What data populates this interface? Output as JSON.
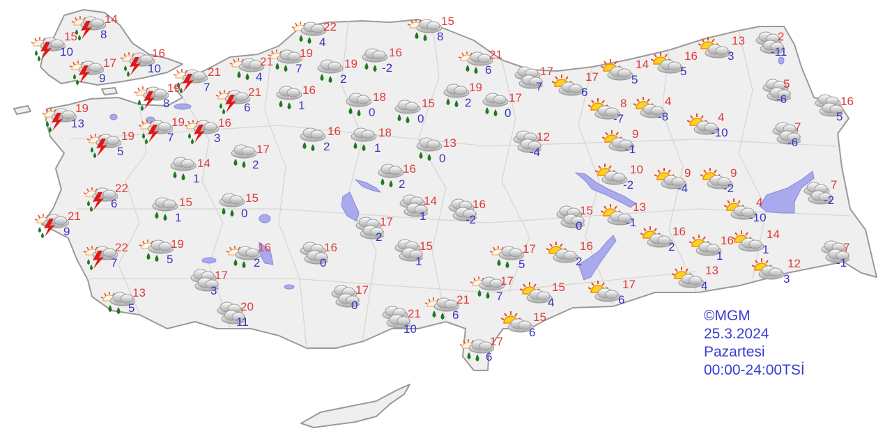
{
  "legend": {
    "copyright": "©MGM",
    "date": "25.3.2024",
    "day": "Pazartesi",
    "period": "00:00-24:00TSİ"
  },
  "colors": {
    "max_temp": "#e03a3a",
    "min_temp": "#3535c0",
    "land": "#efefef",
    "border": "#9a9a9a",
    "lake": "#a9a9ee"
  },
  "stations": [
    {
      "icon": "thunderstorm",
      "max": "14",
      "min": "8"
    },
    {
      "icon": "thunderstorm",
      "max": "15",
      "min": "10"
    },
    {
      "icon": "thunderstorm",
      "max": "17",
      "min": "9"
    },
    {
      "icon": "thunderstorm",
      "max": "16",
      "min": "10"
    },
    {
      "icon": "thunderstorm",
      "max": "21",
      "min": "7"
    },
    {
      "icon": "sun-cloud-rain",
      "max": "21",
      "min": "4"
    },
    {
      "icon": "thunderstorm",
      "max": "19",
      "min": "8"
    },
    {
      "icon": "thunderstorm",
      "max": "21",
      "min": "6"
    },
    {
      "icon": "thunderstorm",
      "max": "19",
      "min": "13"
    },
    {
      "icon": "thunderstorm",
      "max": "19",
      "min": "5"
    },
    {
      "icon": "thunderstorm",
      "max": "19",
      "min": "7"
    },
    {
      "icon": "thunderstorm",
      "max": "16",
      "min": "3"
    },
    {
      "icon": "sun-cloud-rain",
      "max": "22",
      "min": "4"
    },
    {
      "icon": "sun-cloud-rain",
      "max": "19",
      "min": "7"
    },
    {
      "icon": "rain",
      "max": "19",
      "min": "2"
    },
    {
      "icon": "rain",
      "max": "16",
      "min": "-2"
    },
    {
      "icon": "rain",
      "max": "16",
      "min": "1"
    },
    {
      "icon": "rain",
      "max": "18",
      "min": "0"
    },
    {
      "icon": "rain",
      "max": "15",
      "min": "0"
    },
    {
      "icon": "sun-cloud-rain",
      "max": "15",
      "min": "8"
    },
    {
      "icon": "sun-cloud-rain",
      "max": "21",
      "min": "6"
    },
    {
      "icon": "rain",
      "max": "19",
      "min": "2"
    },
    {
      "icon": "rain",
      "max": "17",
      "min": "0"
    },
    {
      "icon": "rain",
      "max": "16",
      "min": "2"
    },
    {
      "icon": "rain",
      "max": "18",
      "min": "1"
    },
    {
      "icon": "rain",
      "max": "13",
      "min": "0"
    },
    {
      "icon": "rain",
      "max": "17",
      "min": "2"
    },
    {
      "icon": "rain",
      "max": "14",
      "min": "1"
    },
    {
      "icon": "cloudy",
      "max": "17",
      "min": "7"
    },
    {
      "icon": "partly-cloudy",
      "max": "17",
      "min": "6"
    },
    {
      "icon": "partly-cloudy",
      "max": "14",
      "min": "5"
    },
    {
      "icon": "partly-cloudy",
      "max": "16",
      "min": "5"
    },
    {
      "icon": "partly-cloudy",
      "max": "13",
      "min": "3"
    },
    {
      "icon": "cloudy",
      "max": "2",
      "min": "-11"
    },
    {
      "icon": "cloudy",
      "max": "5",
      "min": "-6"
    },
    {
      "icon": "cloudy",
      "max": "16",
      "min": "5"
    },
    {
      "icon": "cloudy",
      "max": "7",
      "min": "-6"
    },
    {
      "icon": "partly-cloudy",
      "max": "8",
      "min": "-7"
    },
    {
      "icon": "partly-cloudy",
      "max": "4",
      "min": "-8"
    },
    {
      "icon": "partly-cloudy",
      "max": "4",
      "min": "-10"
    },
    {
      "icon": "partly-cloudy",
      "max": "9",
      "min": "-1"
    },
    {
      "icon": "cloudy",
      "max": "12",
      "min": "-4"
    },
    {
      "icon": "rain",
      "max": "16",
      "min": "2"
    },
    {
      "icon": "partly-cloudy",
      "max": "10",
      "min": "-2"
    },
    {
      "icon": "partly-cloudy",
      "max": "9",
      "min": "-4"
    },
    {
      "icon": "partly-cloudy",
      "max": "9",
      "min": "-2"
    },
    {
      "icon": "cloudy",
      "max": "7",
      "min": "-2"
    },
    {
      "icon": "partly-cloudy",
      "max": "4",
      "min": "-10"
    },
    {
      "icon": "partly-cloudy",
      "max": "13",
      "min": "-1"
    },
    {
      "icon": "cloudy",
      "max": "15",
      "min": "0"
    },
    {
      "icon": "cloudy",
      "max": "14",
      "min": "1"
    },
    {
      "icon": "cloudy",
      "max": "16",
      "min": "-2"
    },
    {
      "icon": "cloudy",
      "max": "17",
      "min": "2"
    },
    {
      "icon": "partly-cloudy",
      "max": "16",
      "min": "2"
    },
    {
      "icon": "partly-cloudy",
      "max": "16",
      "min": "1"
    },
    {
      "icon": "partly-cloudy",
      "max": "14",
      "min": "1"
    },
    {
      "icon": "cloudy",
      "max": "7",
      "min": "-1"
    },
    {
      "icon": "partly-cloudy",
      "max": "12",
      "min": "3"
    },
    {
      "icon": "partly-cloudy",
      "max": "13",
      "min": "4"
    },
    {
      "icon": "partly-cloudy",
      "max": "16",
      "min": "2"
    },
    {
      "icon": "partly-cloudy",
      "max": "17",
      "min": "6"
    },
    {
      "icon": "sun-cloud-rain",
      "max": "17",
      "min": "5"
    },
    {
      "icon": "sun-cloud-rain",
      "max": "17",
      "min": "7"
    },
    {
      "icon": "partly-cloudy",
      "max": "15",
      "min": "4"
    },
    {
      "icon": "partly-cloudy",
      "max": "15",
      "min": "6"
    },
    {
      "icon": "sun-cloud-rain",
      "max": "17",
      "min": "6"
    },
    {
      "icon": "sun-cloud-rain",
      "max": "21",
      "min": "6"
    },
    {
      "icon": "cloudy",
      "max": "21",
      "min": "10"
    },
    {
      "icon": "cloudy",
      "max": "17",
      "min": "0"
    },
    {
      "icon": "cloudy",
      "max": "16",
      "min": "0"
    },
    {
      "icon": "cloudy",
      "max": "15",
      "min": "1"
    },
    {
      "icon": "thunderstorm",
      "max": "22",
      "min": "6"
    },
    {
      "icon": "thunderstorm",
      "max": "21",
      "min": "9"
    },
    {
      "icon": "rain",
      "max": "15",
      "min": "1"
    },
    {
      "icon": "rain",
      "max": "15",
      "min": "0"
    },
    {
      "icon": "thunderstorm",
      "max": "22",
      "min": "7"
    },
    {
      "icon": "sun-cloud-rain",
      "max": "19",
      "min": "5"
    },
    {
      "icon": "sun-cloud-rain",
      "max": "16",
      "min": "2"
    },
    {
      "icon": "cloudy",
      "max": "17",
      "min": "3"
    },
    {
      "icon": "sun-cloud-rain",
      "max": "13",
      "min": "5"
    },
    {
      "icon": "cloudy",
      "max": "20",
      "min": "11"
    }
  ]
}
